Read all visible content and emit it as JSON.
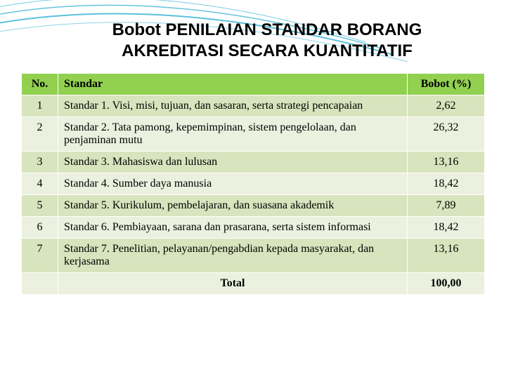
{
  "title_line1": "Bobot PENILAIAN STANDAR BORANG",
  "title_line2": "AKREDITASI SECARA KUANTITATIF",
  "title_fontsize": 24,
  "curve_color": "#3fb5d6",
  "background_color": "#ffffff",
  "table": {
    "header_bg": "#92d050",
    "row_bg_alt1": "#d7e4bd",
    "row_bg_alt2": "#ebf1de",
    "border_color": "#ffffff",
    "font_size": 16,
    "columns": [
      {
        "key": "no",
        "label": "No.",
        "width": 52,
        "align": "center"
      },
      {
        "key": "standar",
        "label": "Standar",
        "align": "left"
      },
      {
        "key": "bobot",
        "label": "Bobot (%)",
        "width": 110,
        "align": "center"
      }
    ],
    "rows": [
      {
        "no": "1",
        "standar": "Standar 1. Visi, misi, tujuan, dan sasaran, serta strategi pencapaian",
        "bobot": "2,62"
      },
      {
        "no": "2",
        "standar": "Standar 2. Tata pamong, kepemimpinan, sistem pengelolaan, dan penjaminan mutu",
        "bobot": "26,32"
      },
      {
        "no": "3",
        "standar": "Standar 3. Mahasiswa dan lulusan",
        "bobot": "13,16"
      },
      {
        "no": "4",
        "standar": "Standar 4. Sumber daya manusia",
        "bobot": "18,42"
      },
      {
        "no": "5",
        "standar": "Standar 5. Kurikulum, pembelajaran, dan suasana akademik",
        "bobot": "7,89"
      },
      {
        "no": "6",
        "standar": "Standar 6. Pembiayaan, sarana dan prasarana, serta sistem informasi",
        "bobot": "18,42"
      },
      {
        "no": "7",
        "standar": "Standar 7. Penelitian, pelayanan/pengabdian kepada masyarakat, dan kerjasama",
        "bobot": "13,16"
      }
    ],
    "total_label": "Total",
    "total_value": "100,00"
  }
}
